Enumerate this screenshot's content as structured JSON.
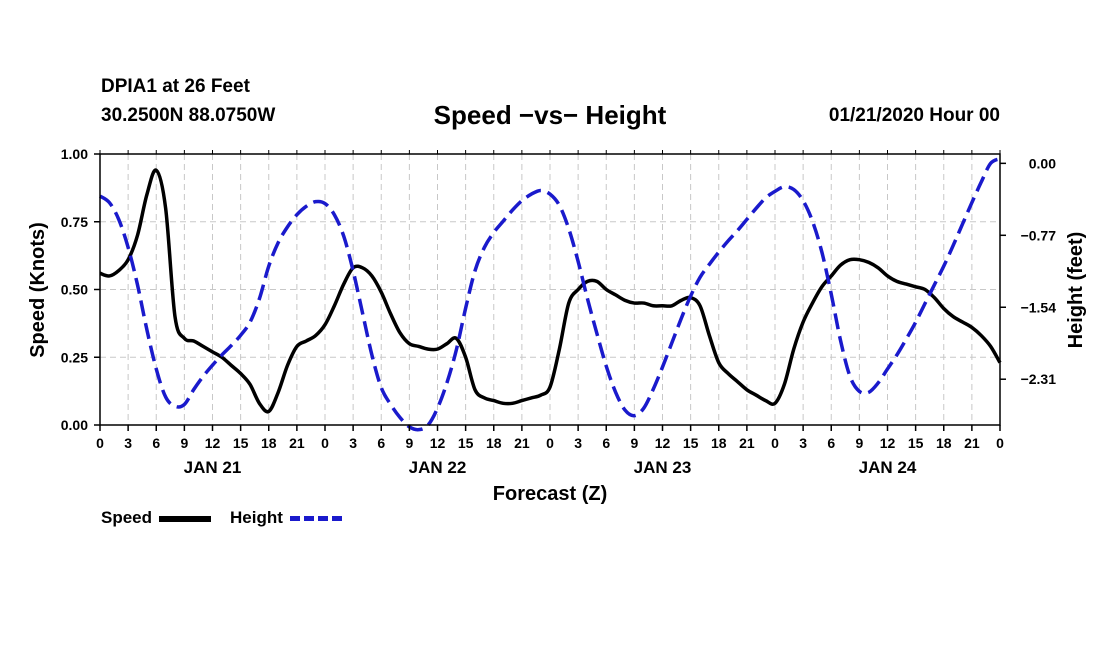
{
  "header": {
    "station": "DPIA1 at 26 Feet",
    "coords": "30.2500N 88.0750W",
    "title": "Speed −vs− Height",
    "date": "01/21/2020 Hour 00"
  },
  "legend": {
    "speed_label": "Speed",
    "height_label": "Height"
  },
  "colors": {
    "speed": "#000000",
    "height": "#1a1acc",
    "grid": "#c8c8c8"
  },
  "chart_data": {
    "type": "line",
    "title": "Speed −vs− Height",
    "xlabel": "Forecast (Z)",
    "ylabel": "Speed (Knots)",
    "y2label": "Height (feet)",
    "x_hours": [
      0,
      96
    ],
    "x_tick_step_hours": 3,
    "x_tick_labels": [
      "0",
      "3",
      "6",
      "9",
      "12",
      "15",
      "18",
      "21",
      "0",
      "3",
      "6",
      "9",
      "12",
      "15",
      "18",
      "21",
      "0",
      "3",
      "6",
      "9",
      "12",
      "15",
      "18",
      "21",
      "0",
      "3",
      "6",
      "9",
      "12",
      "15",
      "18",
      "21",
      "0"
    ],
    "day_labels": [
      {
        "label": "JAN 21",
        "hour": 12
      },
      {
        "label": "JAN 22",
        "hour": 36
      },
      {
        "label": "JAN 23",
        "hour": 60
      },
      {
        "label": "JAN 24",
        "hour": 84
      }
    ],
    "ylim": [
      0,
      1.0
    ],
    "y_ticks": [
      0,
      0.25,
      0.5,
      0.75,
      1.0
    ],
    "y_tick_labels": [
      "0.00",
      "0.25",
      "0.50",
      "0.75",
      "1.00"
    ],
    "y2lim": [
      -2.8,
      0.1
    ],
    "y2_ticks": [
      0.0,
      -0.77,
      -1.54,
      -2.31
    ],
    "y2_tick_labels": [
      "0.00",
      "−0.77",
      "−1.54",
      "−2.31"
    ],
    "series": [
      {
        "name": "Speed",
        "axis": "left",
        "style": "solid",
        "x": [
          0,
          1,
          2,
          3,
          4,
          5,
          6,
          7,
          8,
          9,
          10,
          11,
          12,
          13,
          14,
          15,
          16,
          17,
          18,
          19,
          20,
          21,
          22,
          23,
          24,
          25,
          26,
          27,
          28,
          29,
          30,
          31,
          32,
          33,
          34,
          35,
          36,
          37,
          38,
          39,
          40,
          41,
          42,
          43,
          44,
          45,
          46,
          47,
          48,
          49,
          50,
          51,
          52,
          53,
          54,
          55,
          56,
          57,
          58,
          59,
          60,
          61,
          62,
          63,
          64,
          65,
          66,
          67,
          68,
          69,
          70,
          71,
          72,
          73,
          74,
          75,
          76,
          77,
          78,
          79,
          80,
          81,
          82,
          83,
          84,
          85,
          86,
          87,
          88,
          89,
          90,
          91,
          92,
          93,
          94,
          95,
          96
        ],
        "values": [
          0.56,
          0.55,
          0.57,
          0.61,
          0.7,
          0.85,
          0.94,
          0.8,
          0.4,
          0.32,
          0.31,
          0.29,
          0.27,
          0.25,
          0.22,
          0.19,
          0.15,
          0.08,
          0.05,
          0.12,
          0.22,
          0.29,
          0.31,
          0.33,
          0.37,
          0.44,
          0.52,
          0.58,
          0.58,
          0.55,
          0.49,
          0.41,
          0.34,
          0.3,
          0.29,
          0.28,
          0.28,
          0.3,
          0.32,
          0.25,
          0.13,
          0.1,
          0.09,
          0.08,
          0.08,
          0.09,
          0.1,
          0.11,
          0.14,
          0.28,
          0.45,
          0.5,
          0.53,
          0.53,
          0.5,
          0.48,
          0.46,
          0.45,
          0.45,
          0.44,
          0.44,
          0.44,
          0.46,
          0.47,
          0.44,
          0.33,
          0.23,
          0.19,
          0.16,
          0.13,
          0.11,
          0.09,
          0.08,
          0.15,
          0.28,
          0.38,
          0.45,
          0.51,
          0.55,
          0.59,
          0.61,
          0.61,
          0.6,
          0.58,
          0.55,
          0.53,
          0.52,
          0.51,
          0.5,
          0.47,
          0.43,
          0.4,
          0.38,
          0.36,
          0.33,
          0.29,
          0.23
        ]
      },
      {
        "name": "Height",
        "axis": "right",
        "style": "dashed",
        "x": [
          0,
          1,
          2,
          3,
          4,
          5,
          6,
          7,
          8,
          9,
          10,
          11,
          12,
          13,
          14,
          15,
          16,
          17,
          18,
          19,
          20,
          21,
          22,
          23,
          24,
          25,
          26,
          27,
          28,
          29,
          30,
          31,
          32,
          33,
          34,
          35,
          36,
          37,
          38,
          39,
          40,
          41,
          42,
          43,
          44,
          45,
          46,
          47,
          48,
          49,
          50,
          51,
          52,
          53,
          54,
          55,
          56,
          57,
          58,
          59,
          60,
          61,
          62,
          63,
          64,
          65,
          66,
          67,
          68,
          69,
          70,
          71,
          72,
          73,
          74,
          75,
          76,
          77,
          78,
          79,
          80,
          81,
          82,
          83,
          84,
          85,
          86,
          87,
          88,
          89,
          90,
          91,
          92,
          93,
          94,
          95,
          96
        ],
        "values": [
          -0.35,
          -0.42,
          -0.6,
          -0.9,
          -1.3,
          -1.78,
          -2.2,
          -2.5,
          -2.6,
          -2.58,
          -2.42,
          -2.28,
          -2.16,
          -2.05,
          -1.95,
          -1.84,
          -1.7,
          -1.45,
          -1.1,
          -0.85,
          -0.68,
          -0.55,
          -0.46,
          -0.41,
          -0.43,
          -0.55,
          -0.78,
          -1.15,
          -1.6,
          -2.05,
          -2.4,
          -2.58,
          -2.72,
          -2.82,
          -2.85,
          -2.8,
          -2.62,
          -2.35,
          -2.0,
          -1.55,
          -1.15,
          -0.9,
          -0.74,
          -0.62,
          -0.5,
          -0.4,
          -0.33,
          -0.29,
          -0.33,
          -0.45,
          -0.7,
          -1.05,
          -1.45,
          -1.82,
          -2.17,
          -2.45,
          -2.64,
          -2.7,
          -2.62,
          -2.42,
          -2.18,
          -1.92,
          -1.66,
          -1.42,
          -1.22,
          -1.08,
          -0.95,
          -0.83,
          -0.72,
          -0.6,
          -0.48,
          -0.37,
          -0.3,
          -0.25,
          -0.28,
          -0.4,
          -0.62,
          -0.95,
          -1.4,
          -1.9,
          -2.28,
          -2.44,
          -2.45,
          -2.35,
          -2.2,
          -2.05,
          -1.88,
          -1.7,
          -1.5,
          -1.3,
          -1.1,
          -0.88,
          -0.65,
          -0.42,
          -0.2,
          0.0,
          0.05
        ]
      }
    ]
  }
}
